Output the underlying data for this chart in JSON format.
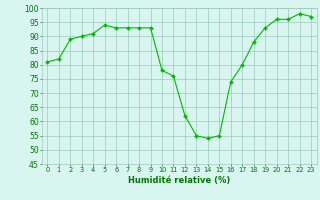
{
  "x": [
    0,
    1,
    2,
    3,
    4,
    5,
    6,
    7,
    8,
    9,
    10,
    11,
    12,
    13,
    14,
    15,
    16,
    17,
    18,
    19,
    20,
    21,
    22,
    23
  ],
  "y": [
    81,
    82,
    89,
    90,
    91,
    94,
    93,
    93,
    93,
    93,
    78,
    76,
    62,
    55,
    54,
    55,
    74,
    80,
    88,
    93,
    96,
    96,
    98,
    97
  ],
  "line_color": "#00bb00",
  "marker_color": "#00bb00",
  "bg_color": "#d8f5f0",
  "grid_color": "#99ccbb",
  "xlabel": "Humidité relative (%)",
  "xlabel_color": "#007700",
  "tick_color": "#007700",
  "ylim": [
    45,
    100
  ],
  "xlim": [
    -0.5,
    23.5
  ],
  "yticks": [
    45,
    50,
    55,
    60,
    65,
    70,
    75,
    80,
    85,
    90,
    95,
    100
  ],
  "xticks": [
    0,
    1,
    2,
    3,
    4,
    5,
    6,
    7,
    8,
    9,
    10,
    11,
    12,
    13,
    14,
    15,
    16,
    17,
    18,
    19,
    20,
    21,
    22,
    23
  ],
  "ytick_fontsize": 5.5,
  "xtick_fontsize": 4.8,
  "xlabel_fontsize": 6.0
}
